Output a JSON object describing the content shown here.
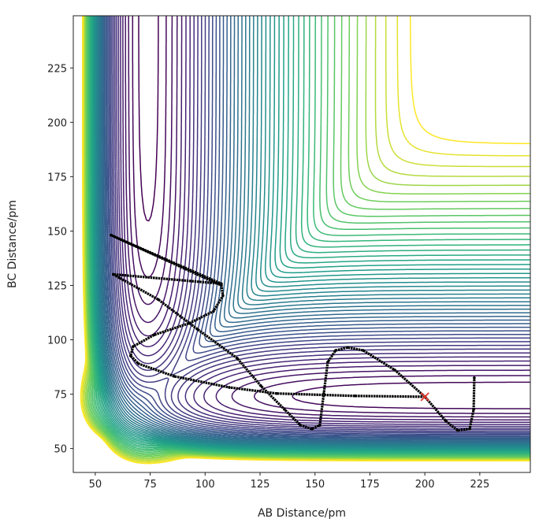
{
  "chart_data": {
    "type": "contour",
    "title": "",
    "xlabel": "AB Distance/pm",
    "ylabel": "BC Distance/pm",
    "xlim": [
      40,
      248
    ],
    "ylim": [
      39,
      249
    ],
    "xticks": [
      50,
      75,
      100,
      125,
      150,
      175,
      200,
      225
    ],
    "yticks": [
      50,
      75,
      100,
      125,
      150,
      175,
      200,
      225
    ],
    "grid": false,
    "colormap": "viridis",
    "contour_levels": {
      "count": 48,
      "min": 0.01,
      "max": 0.86
    },
    "trajectory": {
      "color": "#000000",
      "x": [
        200,
        168.4,
        132.5,
        111,
        85.9,
        69.7,
        66.1,
        67.2,
        76.9,
        93,
        103.8,
        108.1,
        107.4,
        57.2,
        107.4,
        58.2,
        60.8,
        78.7,
        96.6,
        114.6,
        125.3,
        136.1,
        143.3,
        148.6,
        152.2,
        154,
        155.8,
        159.4,
        164.8,
        172,
        186.3,
        200,
        209.6,
        215,
        220.4,
        222.2,
        222.5
      ],
      "y": [
        73.8,
        74.2,
        75.3,
        78.1,
        83.2,
        89,
        92.6,
        96.9,
        102.3,
        107.7,
        113.1,
        120.3,
        125,
        148.1,
        125.8,
        130.1,
        128.6,
        118.5,
        104.8,
        91.5,
        78.9,
        68,
        60.8,
        59,
        60.8,
        75.3,
        89.7,
        95.1,
        96.5,
        95.1,
        86.1,
        73.8,
        62.6,
        58.3,
        59,
        68,
        82.5
      ]
    },
    "start_marker": {
      "x": 200,
      "y": 73.8,
      "symbol": "x",
      "color": "#e8332a"
    }
  }
}
